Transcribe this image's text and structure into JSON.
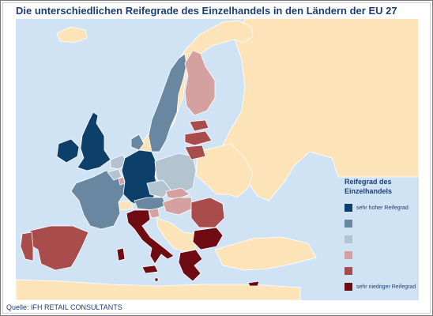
{
  "title": "Die unterschiedlichen Reifegrade des Einzelhandels in den Ländern der EU 27",
  "legend": {
    "title": "Reifegrad des Einzelhandels",
    "levels": [
      {
        "label": "sehr hoher Reifegrad",
        "color": "#0d3f6b"
      },
      {
        "label": "",
        "color": "#6a87a2"
      },
      {
        "label": "",
        "color": "#b4c3d0"
      },
      {
        "label": "",
        "color": "#d4a0a0"
      },
      {
        "label": "",
        "color": "#a84c4c"
      },
      {
        "label": "sehr niedriger Reifegrad",
        "color": "#6f0b12"
      }
    ]
  },
  "colors": {
    "sea": "#cfe3f5",
    "non_eu": "#fde3b8",
    "border": "#ffffff"
  },
  "map_data": {
    "regions": [
      {
        "country": "Deutschland",
        "level": 1
      },
      {
        "country": "Vereinigtes Königreich",
        "level": 1
      },
      {
        "country": "Irland",
        "level": 1
      },
      {
        "country": "Frankreich",
        "level": 2
      },
      {
        "country": "Schweden",
        "level": 2
      },
      {
        "country": "Österreich",
        "level": 2
      },
      {
        "country": "Dänemark",
        "level": 2
      },
      {
        "country": "Polen",
        "level": 3
      },
      {
        "country": "Tschechien",
        "level": 3
      },
      {
        "country": "Niederlande",
        "level": 3
      },
      {
        "country": "Belgien",
        "level": 3
      },
      {
        "country": "Finnland",
        "level": 4
      },
      {
        "country": "Luxemburg",
        "level": 4
      },
      {
        "country": "Ungarn",
        "level": 4
      },
      {
        "country": "Slowakei",
        "level": 4
      },
      {
        "country": "Slowenien",
        "level": 4
      },
      {
        "country": "Spanien",
        "level": 5
      },
      {
        "country": "Portugal",
        "level": 5
      },
      {
        "country": "Estland",
        "level": 5
      },
      {
        "country": "Lettland",
        "level": 5
      },
      {
        "country": "Litauen",
        "level": 5
      },
      {
        "country": "Rumänien",
        "level": 5
      },
      {
        "country": "Italien",
        "level": 6
      },
      {
        "country": "Bulgarien",
        "level": 6
      },
      {
        "country": "Griechenland",
        "level": 6
      },
      {
        "country": "Malta",
        "level": 6
      },
      {
        "country": "Zypern",
        "level": 6
      }
    ]
  },
  "source": "Quelle: IFH RETAIL CONSULTANTS"
}
